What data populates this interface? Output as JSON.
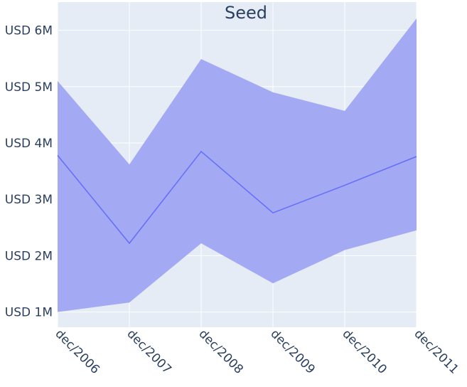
{
  "chart_data": {
    "type": "area",
    "title": "Seed",
    "xlabel": "",
    "ylabel": "",
    "categories": [
      "dec/2006",
      "dec/2007",
      "dec/2008",
      "dec/2009",
      "dec/2010",
      "dec/2011"
    ],
    "y_ticks": [
      1000000,
      2000000,
      3000000,
      4000000,
      5000000,
      6000000
    ],
    "y_tick_labels": [
      "USD 1M",
      "USD 2M",
      "USD 3M",
      "USD 4M",
      "USD 5M",
      "USD 6M"
    ],
    "ylim": [
      730000,
      6500000
    ],
    "grid": true,
    "series": [
      {
        "role": "center",
        "values": [
          3780000,
          2220000,
          3850000,
          2760000,
          3250000,
          3760000
        ],
        "color": "#636efa"
      }
    ],
    "band": {
      "upper": [
        5100000,
        3620000,
        5490000,
        4900000,
        4570000,
        6210000
      ],
      "lower": [
        1000000,
        1170000,
        2220000,
        1510000,
        2100000,
        2450000
      ],
      "color": "#a4a9f4"
    },
    "plot_background": "#e5ecf6",
    "grid_color": "#ffffff",
    "text_color": "#2a3f5f"
  }
}
